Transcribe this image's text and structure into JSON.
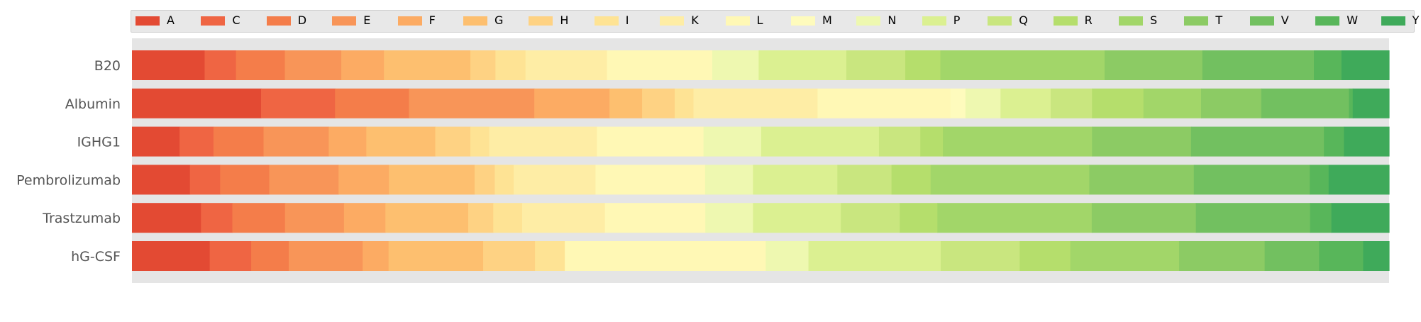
{
  "colors": {
    "A": "#e34a33",
    "C": "#ef6543",
    "D": "#f47d4a",
    "E": "#f89558",
    "F": "#fcab63",
    "G": "#fdbf6f",
    "H": "#fed283",
    "I": "#fee394",
    "K": "#feeda5",
    "L": "#fff8b5",
    "M": "#fefbbd",
    "N": "#eef8b0",
    "P": "#dbf091",
    "Q": "#c9e67f",
    "R": "#b5de6c",
    "S": "#a2d669",
    "T": "#8ccb64",
    "V": "#72c060",
    "W": "#58b65a",
    "Y": "#3faa5a"
  },
  "chart_data": {
    "type": "bar",
    "orientation": "horizontal",
    "stacked": true,
    "categories": [
      "B20",
      "Albumin",
      "IGHG1",
      "Pembrolizumab",
      "Trastzumab",
      "hG-CSF"
    ],
    "xlim": [
      0,
      1
    ],
    "grid": false,
    "legend_position": "top",
    "series": [
      {
        "name": "A",
        "values": [
          0.058,
          0.103,
          0.038,
          0.046,
          0.055,
          0.06
        ]
      },
      {
        "name": "C",
        "values": [
          0.025,
          0.059,
          0.027,
          0.024,
          0.025,
          0.032
        ]
      },
      {
        "name": "D",
        "values": [
          0.039,
          0.059,
          0.04,
          0.039,
          0.042,
          0.029
        ]
      },
      {
        "name": "E",
        "values": [
          0.045,
          0.1,
          0.052,
          0.055,
          0.047,
          0.057
        ]
      },
      {
        "name": "F",
        "values": [
          0.034,
          0.06,
          0.03,
          0.04,
          0.033,
          0.02
        ]
      },
      {
        "name": "G",
        "values": [
          0.069,
          0.026,
          0.055,
          0.068,
          0.066,
          0.073
        ]
      },
      {
        "name": "H",
        "values": [
          0.02,
          0.026,
          0.028,
          0.016,
          0.02,
          0.04
        ]
      },
      {
        "name": "I",
        "values": [
          0.024,
          0.015,
          0.015,
          0.015,
          0.023,
          0.023
        ]
      },
      {
        "name": "K",
        "values": [
          0.065,
          0.099,
          0.086,
          0.065,
          0.066,
          0.0
        ]
      },
      {
        "name": "L",
        "values": [
          0.084,
          0.106,
          0.085,
          0.087,
          0.08,
          0.155
        ]
      },
      {
        "name": "M",
        "values": [
          0.0,
          0.012,
          0.0,
          0.0,
          0.0,
          0.0
        ]
      },
      {
        "name": "N",
        "values": [
          0.037,
          0.028,
          0.046,
          0.038,
          0.038,
          0.033
        ]
      },
      {
        "name": "P",
        "values": [
          0.07,
          0.04,
          0.094,
          0.067,
          0.07,
          0.102
        ]
      },
      {
        "name": "Q",
        "values": [
          0.047,
          0.033,
          0.033,
          0.043,
          0.047,
          0.061
        ]
      },
      {
        "name": "R",
        "values": [
          0.028,
          0.041,
          0.018,
          0.031,
          0.03,
          0.039
        ]
      },
      {
        "name": "S",
        "values": [
          0.131,
          0.046,
          0.119,
          0.126,
          0.123,
          0.084
        ]
      },
      {
        "name": "T",
        "values": [
          0.078,
          0.048,
          0.079,
          0.083,
          0.083,
          0.066
        ]
      },
      {
        "name": "V",
        "values": [
          0.089,
          0.07,
          0.106,
          0.092,
          0.091,
          0.042
        ]
      },
      {
        "name": "W",
        "values": [
          0.022,
          0.003,
          0.016,
          0.015,
          0.017,
          0.034
        ]
      },
      {
        "name": "Y",
        "values": [
          0.038,
          0.029,
          0.036,
          0.048,
          0.046,
          0.02
        ]
      }
    ]
  }
}
